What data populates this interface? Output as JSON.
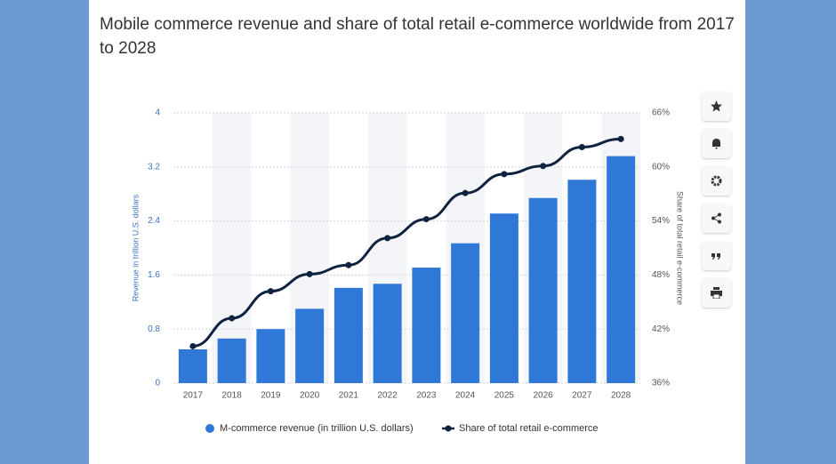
{
  "chart_data": {
    "type": "bar",
    "title": "Mobile commerce revenue and share of total retail e-commerce worldwide from 2017 to 2028",
    "categories": [
      "2017",
      "2018",
      "2019",
      "2020",
      "2021",
      "2022",
      "2023",
      "2024",
      "2025",
      "2026",
      "2027",
      "2028"
    ],
    "series": [
      {
        "name": "M-commerce revenue (in trillion U.S. dollars)",
        "color": "#2f78d8",
        "values": [
          0.5,
          0.66,
          0.8,
          1.1,
          1.41,
          1.47,
          1.71,
          2.07,
          2.51,
          2.74,
          3.01,
          3.36
        ]
      },
      {
        "name": "Share of total retail e-commerce",
        "color": "#0f2240",
        "type": "line",
        "axis": "y2",
        "values": [
          40.1,
          43.2,
          46.2,
          48.1,
          49.1,
          52.1,
          54.2,
          57.1,
          59.2,
          60.1,
          62.2,
          63.1
        ]
      }
    ],
    "y_label": "Revenue in trillion U.S. dollars",
    "y2_label": "Share of total retail e-commerce",
    "ylim": [
      0,
      4
    ],
    "yticks": [
      0,
      0.8,
      1.6,
      2.4,
      3.2,
      4
    ],
    "y2lim": [
      36,
      66
    ],
    "y2ticks": [
      {
        "value": 36,
        "label": "36%"
      },
      {
        "value": 42,
        "label": "42%"
      },
      {
        "value": 48,
        "label": "48%"
      },
      {
        "value": 54,
        "label": "54%"
      },
      {
        "value": 60,
        "label": "60%"
      },
      {
        "value": 66,
        "label": "66%"
      }
    ],
    "grid": true,
    "legend": "bottom"
  }
}
